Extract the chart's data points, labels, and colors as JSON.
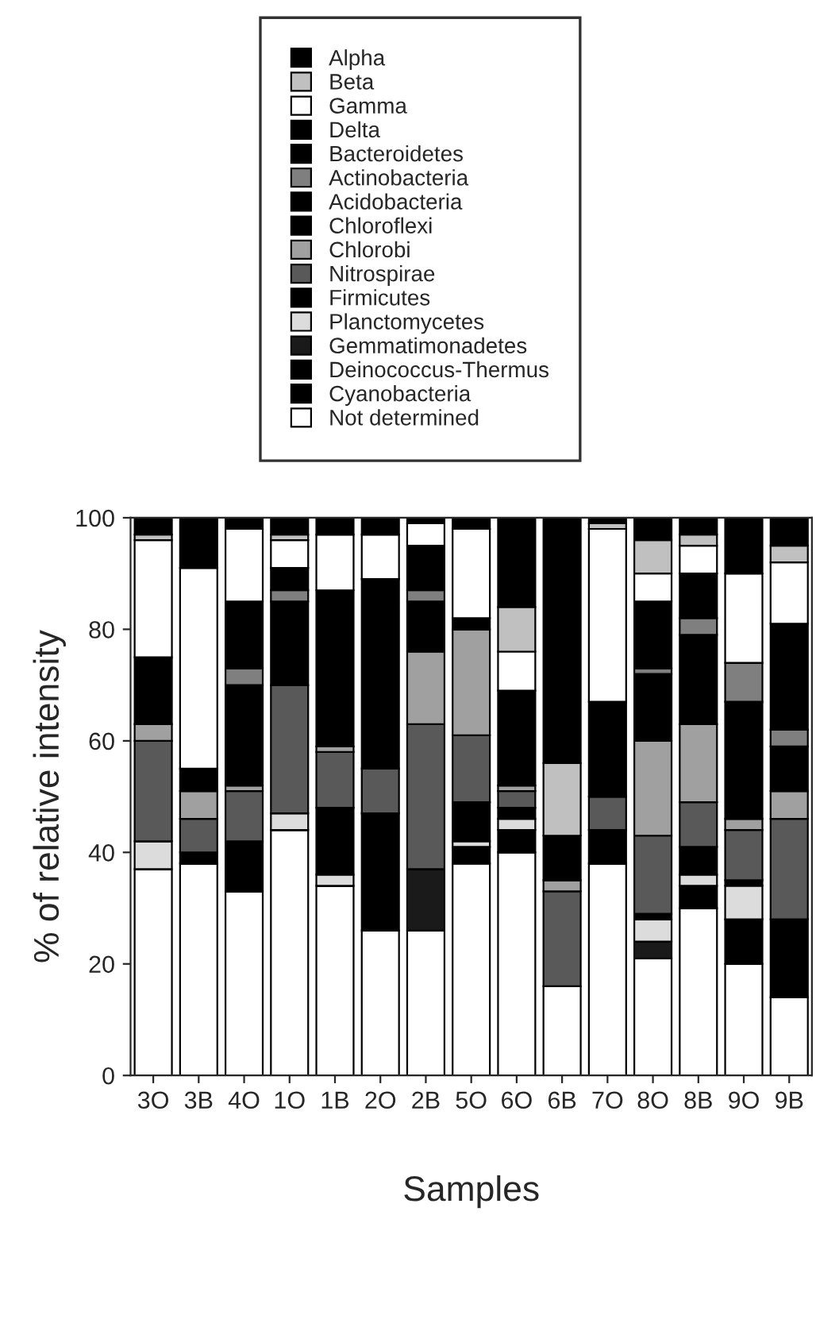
{
  "chart_data": {
    "type": "bar",
    "stacked": true,
    "xlabel": "Samples",
    "ylabel": "% of relative intensity",
    "categories": [
      "3O",
      "3B",
      "4O",
      "1O",
      "1B",
      "2O",
      "2B",
      "5O",
      "6O",
      "6B",
      "7O",
      "8O",
      "8B",
      "9O",
      "9B"
    ],
    "ylim": [
      0,
      100
    ],
    "yticks": [
      0,
      20,
      40,
      60,
      80,
      100
    ],
    "legend": "top",
    "grid": false,
    "series": [
      {
        "name": "Not determined",
        "color": "#ffffff",
        "values": [
          37,
          38,
          33,
          44,
          34,
          26,
          26,
          38,
          40,
          16,
          38,
          21,
          30,
          20,
          14
        ]
      },
      {
        "name": "Cyanobacteria",
        "color": "#000000",
        "values": [
          0,
          0,
          0,
          0,
          0,
          0,
          0,
          0,
          0,
          0,
          0,
          0,
          0,
          0,
          0
        ]
      },
      {
        "name": "Deinococcus-Thermus",
        "color": "#000000",
        "values": [
          0,
          0,
          0,
          0,
          0,
          0,
          0,
          3,
          4,
          0,
          0,
          0,
          4,
          8,
          14
        ]
      },
      {
        "name": "Gemmatimonadetes",
        "color": "#1a1a1a",
        "values": [
          0,
          0,
          0,
          0,
          0,
          0,
          11,
          0,
          0,
          0,
          0,
          3,
          0,
          0,
          0
        ]
      },
      {
        "name": "Planctomycetes",
        "color": "#dcdcdc",
        "values": [
          5,
          0,
          0,
          3,
          2,
          0,
          0,
          1,
          2,
          0,
          0,
          4,
          2,
          6,
          0
        ]
      },
      {
        "name": "Firmicutes",
        "color": "#000000",
        "values": [
          0,
          2,
          9,
          0,
          12,
          21,
          0,
          7,
          2,
          0,
          6,
          1,
          5,
          1,
          0
        ]
      },
      {
        "name": "Nitrospirae",
        "color": "#595959",
        "values": [
          18,
          6,
          9,
          23,
          10,
          8,
          26,
          12,
          3,
          17,
          6,
          14,
          8,
          9,
          18
        ]
      },
      {
        "name": "Chlorobi",
        "color": "#a0a0a0",
        "values": [
          3,
          5,
          1,
          0,
          1,
          0,
          13,
          19,
          1,
          2,
          0,
          17,
          14,
          2,
          5
        ]
      },
      {
        "name": "Chloroflexi",
        "color": "#000000",
        "values": [
          0,
          0,
          0,
          0,
          0,
          0,
          0,
          0,
          0,
          0,
          0,
          0,
          0,
          0,
          0
        ]
      },
      {
        "name": "Acidobacteria",
        "color": "#000000",
        "values": [
          12,
          4,
          18,
          15,
          28,
          34,
          9,
          0,
          17,
          8,
          17,
          12,
          16,
          21,
          8
        ]
      },
      {
        "name": "Actinobacteria",
        "color": "#7f7f7f",
        "values": [
          0,
          0,
          3,
          2,
          0,
          0,
          2,
          0,
          0,
          0,
          0,
          1,
          3,
          7,
          3
        ]
      },
      {
        "name": "Bacteroidetes",
        "color": "#000000",
        "values": [
          0,
          0,
          12,
          4,
          0,
          0,
          8,
          2,
          0,
          0,
          0,
          12,
          8,
          0,
          19
        ]
      },
      {
        "name": "Delta",
        "color": "#000000",
        "values": [
          0,
          0,
          0,
          0,
          0,
          0,
          0,
          0,
          0,
          0,
          0,
          0,
          0,
          0,
          0
        ]
      },
      {
        "name": "Gamma",
        "color": "#ffffff",
        "values": [
          21,
          36,
          13,
          5,
          10,
          8,
          4,
          16,
          7,
          0,
          31,
          5,
          5,
          16,
          11
        ]
      },
      {
        "name": "Beta",
        "color": "#c0c0c0",
        "values": [
          1,
          0,
          0,
          1,
          0,
          0,
          0,
          0,
          8,
          13,
          1,
          6,
          2,
          0,
          3
        ]
      },
      {
        "name": "Alpha",
        "color": "#000000",
        "values": [
          3,
          9,
          2,
          3,
          3,
          3,
          1,
          2,
          16,
          44,
          1,
          4,
          3,
          10,
          5
        ]
      }
    ]
  }
}
